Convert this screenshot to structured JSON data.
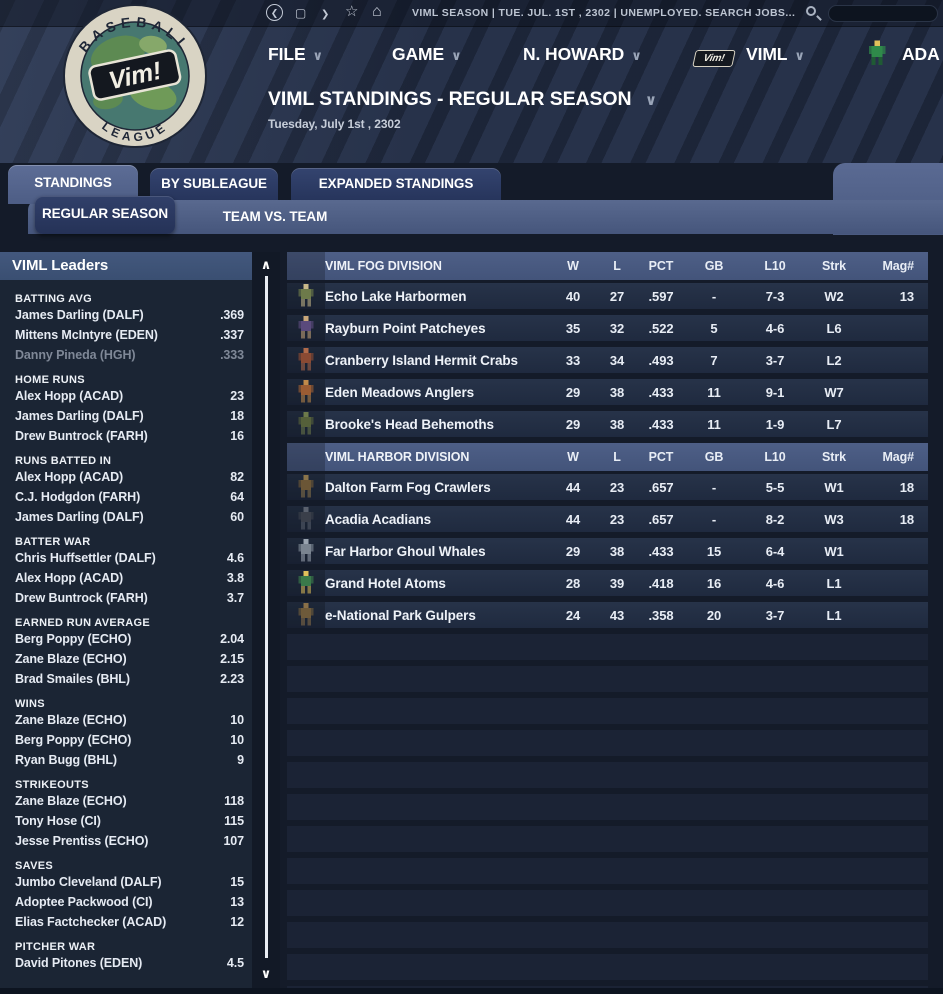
{
  "ui": {
    "chevron": "∨",
    "scroll_up": "∧",
    "scroll_down": "∨"
  },
  "colors": {
    "accent_band": "#4e5e86",
    "tab_dark": "#2b3a63",
    "division_header": "#47587e",
    "row_band": "#232e45",
    "page_bg": "#141b29",
    "muted_text": "#7f8897"
  },
  "top_bar": {
    "status": "VIML SEASON  |  TUE. JUL. 1ST , 2302  |  UNEMPLOYED. SEARCH JOBS...",
    "nav": {
      "back": "❮",
      "window": "▢",
      "forward": "❯",
      "star": "☆",
      "home": "⌂"
    }
  },
  "menu": {
    "items": [
      {
        "label": "FILE"
      },
      {
        "label": "GAME"
      },
      {
        "label": "N. HOWARD"
      },
      {
        "label": "VIML"
      },
      {
        "label": "ADA"
      }
    ]
  },
  "header": {
    "title": "VIML STANDINGS - REGULAR SEASON",
    "date": "Tuesday, July 1st , 2302"
  },
  "logo": {
    "top": "BASEBALL",
    "bottom": "LEAGUE",
    "center": "Vim!"
  },
  "tabs": [
    {
      "label": "STANDINGS",
      "active": true
    },
    {
      "label": "BY SUBLEAGUE",
      "active": false
    },
    {
      "label": "EXPANDED STANDINGS",
      "active": false
    }
  ],
  "subtabs": [
    {
      "label": "REGULAR SEASON",
      "active": true
    },
    {
      "label": "TEAM VS. TEAM",
      "active": false
    }
  ],
  "sidebar": {
    "title": "VIML Leaders",
    "sections": [
      {
        "label": "BATTING AVG",
        "rows": [
          {
            "player": "James Darling (DALF)",
            "value": ".369",
            "muted": false
          },
          {
            "player": "Mittens McIntyre (EDEN)",
            "value": ".337",
            "muted": false
          },
          {
            "player": "Danny Pineda (HGH)",
            "value": ".333",
            "muted": true
          }
        ]
      },
      {
        "label": "HOME RUNS",
        "rows": [
          {
            "player": "Alex Hopp (ACAD)",
            "value": "23",
            "muted": false
          },
          {
            "player": "James Darling (DALF)",
            "value": "18",
            "muted": false
          },
          {
            "player": "Drew Buntrock (FARH)",
            "value": "16",
            "muted": false
          }
        ]
      },
      {
        "label": "RUNS BATTED IN",
        "rows": [
          {
            "player": "Alex Hopp (ACAD)",
            "value": "82",
            "muted": false
          },
          {
            "player": "C.J. Hodgdon (FARH)",
            "value": "64",
            "muted": false
          },
          {
            "player": "James Darling (DALF)",
            "value": "60",
            "muted": false
          }
        ]
      },
      {
        "label": "BATTER WAR",
        "rows": [
          {
            "player": "Chris Huffsettler (DALF)",
            "value": "4.6",
            "muted": false
          },
          {
            "player": "Alex Hopp (ACAD)",
            "value": "3.8",
            "muted": false
          },
          {
            "player": "Drew Buntrock (FARH)",
            "value": "3.7",
            "muted": false
          }
        ]
      },
      {
        "label": "EARNED RUN AVERAGE",
        "rows": [
          {
            "player": "Berg Poppy (ECHO)",
            "value": "2.04",
            "muted": false
          },
          {
            "player": "Zane Blaze (ECHO)",
            "value": "2.15",
            "muted": false
          },
          {
            "player": "Brad Smailes (BHL)",
            "value": "2.23",
            "muted": false
          }
        ]
      },
      {
        "label": "WINS",
        "rows": [
          {
            "player": "Zane Blaze (ECHO)",
            "value": "10",
            "muted": false
          },
          {
            "player": "Berg Poppy (ECHO)",
            "value": "10",
            "muted": false
          },
          {
            "player": "Ryan Bugg (BHL)",
            "value": "9",
            "muted": false
          }
        ]
      },
      {
        "label": "STRIKEOUTS",
        "rows": [
          {
            "player": "Zane Blaze (ECHO)",
            "value": "118",
            "muted": false
          },
          {
            "player": "Tony Hose (CI)",
            "value": "115",
            "muted": false
          },
          {
            "player": "Jesse Prentiss (ECHO)",
            "value": "107",
            "muted": false
          }
        ]
      },
      {
        "label": "SAVES",
        "rows": [
          {
            "player": "Jumbo Cleveland (DALF)",
            "value": "15",
            "muted": false
          },
          {
            "player": "Adoptee Packwood (CI)",
            "value": "13",
            "muted": false
          },
          {
            "player": "Elias Factchecker (ACAD)",
            "value": "12",
            "muted": false
          }
        ]
      },
      {
        "label": "PITCHER WAR",
        "rows": [
          {
            "player": "David Pitones (EDEN)",
            "value": "4.5",
            "muted": false
          }
        ]
      }
    ]
  },
  "standings": {
    "columns": [
      "W",
      "L",
      "PCT",
      "GB",
      "L10",
      "Strk",
      "Mag#"
    ],
    "divisions": [
      {
        "name": "VIML FOG DIVISION",
        "teams": [
          {
            "name": "Echo Lake Harbormen",
            "w": "40",
            "l": "27",
            "pct": ".597",
            "gb": "-",
            "l10": "7-3",
            "strk": "W2",
            "mag": "13",
            "icon": "harborman-sprite-icon",
            "c1": "#6d7a4a",
            "c2": "#c9b98a"
          },
          {
            "name": "Rayburn Point Patcheyes",
            "w": "35",
            "l": "32",
            "pct": ".522",
            "gb": "5",
            "l10": "4-6",
            "strk": "L6",
            "mag": "",
            "icon": "pirate-sprite-icon",
            "c1": "#5a4a7c",
            "c2": "#caa87a"
          },
          {
            "name": "Cranberry Island Hermit Crabs",
            "w": "33",
            "l": "34",
            "pct": ".493",
            "gb": "7",
            "l10": "3-7",
            "strk": "L2",
            "mag": "",
            "icon": "crab-sprite-icon",
            "c1": "#8a4a33",
            "c2": "#b06a4a"
          },
          {
            "name": "Eden Meadows Anglers",
            "w": "29",
            "l": "38",
            "pct": ".433",
            "gb": "11",
            "l10": "9-1",
            "strk": "W7",
            "mag": "",
            "icon": "angler-sprite-icon",
            "c1": "#9a5c33",
            "c2": "#c08a4a"
          },
          {
            "name": "Brooke's Head Behemoths",
            "w": "29",
            "l": "38",
            "pct": ".433",
            "gb": "11",
            "l10": "1-9",
            "strk": "L7",
            "mag": "",
            "icon": "behemoth-sprite-icon",
            "c1": "#55603a",
            "c2": "#6d7a4a"
          }
        ]
      },
      {
        "name": "VIML HARBOR DIVISION",
        "teams": [
          {
            "name": "Dalton Farm Fog Crawlers",
            "w": "44",
            "l": "23",
            "pct": ".657",
            "gb": "-",
            "l10": "5-5",
            "strk": "W1",
            "mag": "18",
            "icon": "fog-crawler-sprite-icon",
            "c1": "#6b5636",
            "c2": "#8a744a"
          },
          {
            "name": "Acadia Acadians",
            "w": "44",
            "l": "23",
            "pct": ".657",
            "gb": "-",
            "l10": "8-2",
            "strk": "W3",
            "mag": "18",
            "icon": "synth-sprite-icon",
            "c1": "#3a3f4a",
            "c2": "#5a616e"
          },
          {
            "name": "Far Harbor Ghoul Whales",
            "w": "29",
            "l": "38",
            "pct": ".433",
            "gb": "15",
            "l10": "6-4",
            "strk": "W1",
            "mag": "",
            "icon": "whale-sprite-icon",
            "c1": "#7a8490",
            "c2": "#9aa4b0"
          },
          {
            "name": "Grand Hotel Atoms",
            "w": "28",
            "l": "39",
            "pct": ".418",
            "gb": "16",
            "l10": "4-6",
            "strk": "L1",
            "mag": "",
            "icon": "atom-zealot-sprite-icon",
            "c1": "#3a7a4a",
            "c2": "#e0c05a"
          },
          {
            "name": "e-National Park Gulpers",
            "w": "24",
            "l": "43",
            "pct": ".358",
            "gb": "20",
            "l10": "3-7",
            "strk": "L1",
            "mag": "",
            "icon": "gulper-sprite-icon",
            "c1": "#6e5a3a",
            "c2": "#8a7048"
          }
        ]
      }
    ]
  }
}
